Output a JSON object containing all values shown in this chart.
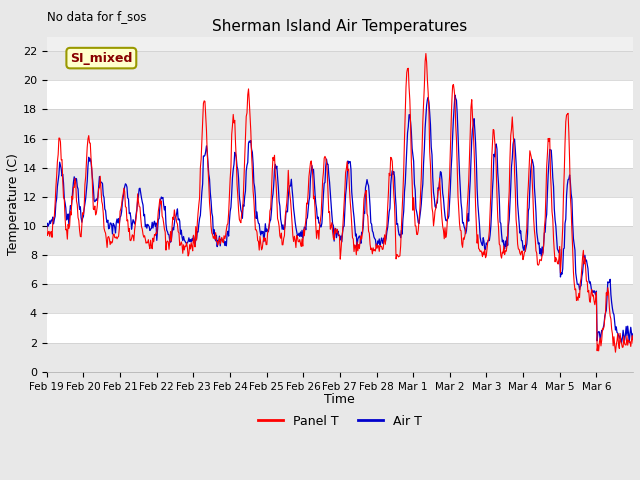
{
  "title": "Sherman Island Air Temperatures",
  "subtitle": "No data for f_sos",
  "xlabel": "Time",
  "ylabel": "Temperature (C)",
  "ylim": [
    0,
    23
  ],
  "yticks": [
    0,
    2,
    4,
    6,
    8,
    10,
    12,
    14,
    16,
    18,
    20,
    22
  ],
  "xtick_labels": [
    "Feb 19",
    "Feb 20",
    "Feb 21",
    "Feb 22",
    "Feb 23",
    "Feb 24",
    "Feb 25",
    "Feb 26",
    "Feb 27",
    "Feb 28",
    "Mar 1",
    "Mar 2",
    "Mar 3",
    "Mar 4",
    "Mar 5",
    "Mar 6"
  ],
  "legend_label_red": "Panel T",
  "legend_label_blue": "Air T",
  "legend_box_label": "SI_mixed",
  "panel_color": "#ff0000",
  "air_color": "#0000cc",
  "background_color": "#e8e8e8",
  "plot_bg_color": "#f0f0f0",
  "grid_color": "#ffffff",
  "band_color_light": "#e8e8e8",
  "band_color_white": "#f8f8f8"
}
